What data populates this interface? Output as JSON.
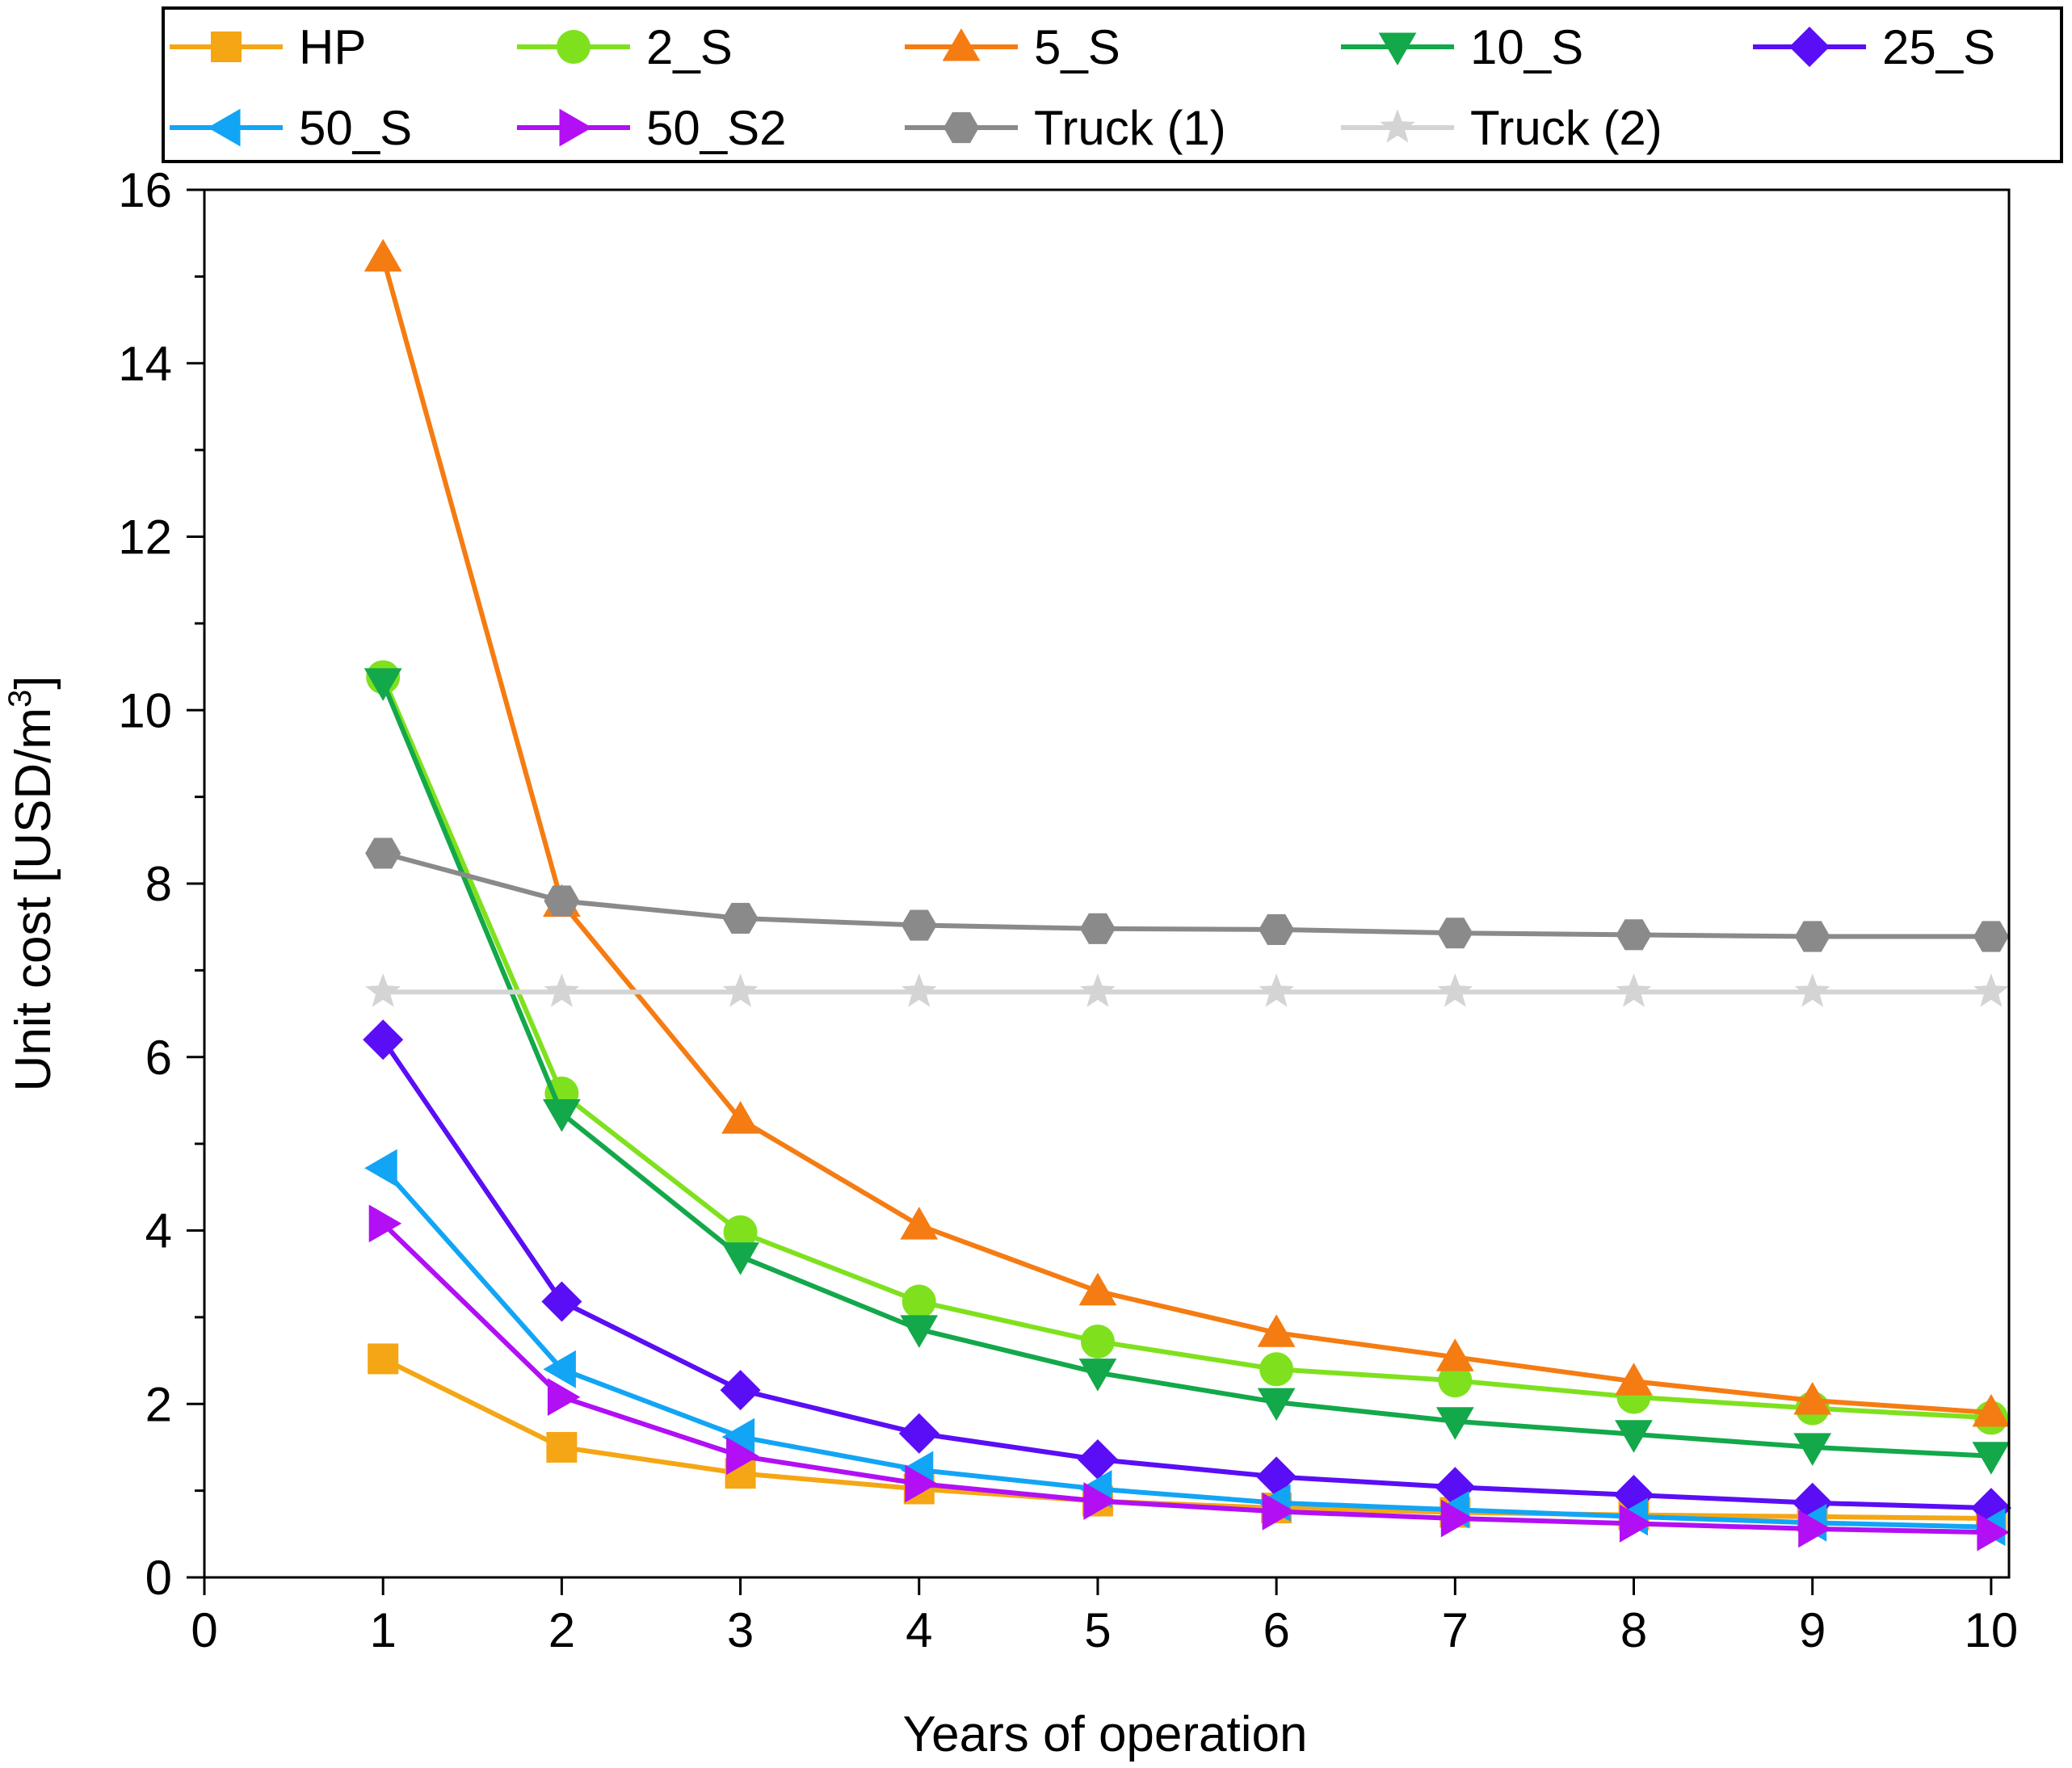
{
  "chart_data": {
    "type": "line",
    "title": "",
    "xlabel": "Years of operation",
    "ylabel": "Unit cost [USD/m",
    "ylabel_superscript": "3",
    "ylabel_suffix": "]",
    "x": [
      1,
      2,
      3,
      4,
      5,
      6,
      7,
      8,
      9,
      10
    ],
    "xlim": [
      0,
      10.1
    ],
    "ylim": [
      0,
      16
    ],
    "xticks": [
      0,
      1,
      2,
      3,
      4,
      5,
      6,
      7,
      8,
      9,
      10
    ],
    "yticks": [
      0,
      2,
      4,
      6,
      8,
      10,
      12,
      14,
      16
    ],
    "grid": false,
    "legend_position": "top",
    "series": [
      {
        "name": "HP",
        "color": "#F5A614",
        "marker": "square",
        "values": [
          2.52,
          1.5,
          1.2,
          1.02,
          0.88,
          0.8,
          0.75,
          0.72,
          0.7,
          0.68
        ]
      },
      {
        "name": "2_S",
        "color": "#7FE11E",
        "marker": "circle",
        "values": [
          10.38,
          5.58,
          3.98,
          3.18,
          2.72,
          2.4,
          2.27,
          2.08,
          1.95,
          1.84
        ]
      },
      {
        "name": "5_S",
        "color": "#F57C12",
        "marker": "triangle-up",
        "values": [
          15.22,
          7.78,
          5.28,
          4.06,
          3.3,
          2.82,
          2.54,
          2.26,
          2.04,
          1.9
        ]
      },
      {
        "name": "10_S",
        "color": "#13A84A",
        "marker": "triangle-down",
        "values": [
          10.32,
          5.35,
          3.7,
          2.86,
          2.36,
          2.02,
          1.8,
          1.65,
          1.5,
          1.4
        ]
      },
      {
        "name": "25_S",
        "color": "#5A0EF5",
        "marker": "diamond",
        "values": [
          6.2,
          3.18,
          2.16,
          1.66,
          1.36,
          1.16,
          1.04,
          0.95,
          0.86,
          0.8
        ]
      },
      {
        "name": "50_S",
        "color": "#12A5F5",
        "marker": "triangle-left",
        "values": [
          4.72,
          2.4,
          1.62,
          1.24,
          1.02,
          0.86,
          0.78,
          0.7,
          0.63,
          0.58
        ]
      },
      {
        "name": "50_S2",
        "color": "#B20FF5",
        "marker": "triangle-right",
        "values": [
          4.08,
          2.08,
          1.4,
          1.08,
          0.88,
          0.76,
          0.68,
          0.62,
          0.56,
          0.52
        ]
      },
      {
        "name": "Truck (1)",
        "color": "#8A8A8A",
        "marker": "hexagon",
        "values": [
          8.35,
          7.8,
          7.6,
          7.52,
          7.48,
          7.47,
          7.43,
          7.41,
          7.39,
          7.39
        ]
      },
      {
        "name": "Truck (2)",
        "color": "#D4D4D4",
        "marker": "star",
        "values": [
          6.75,
          6.75,
          6.75,
          6.75,
          6.75,
          6.75,
          6.75,
          6.75,
          6.75,
          6.75
        ]
      }
    ]
  }
}
